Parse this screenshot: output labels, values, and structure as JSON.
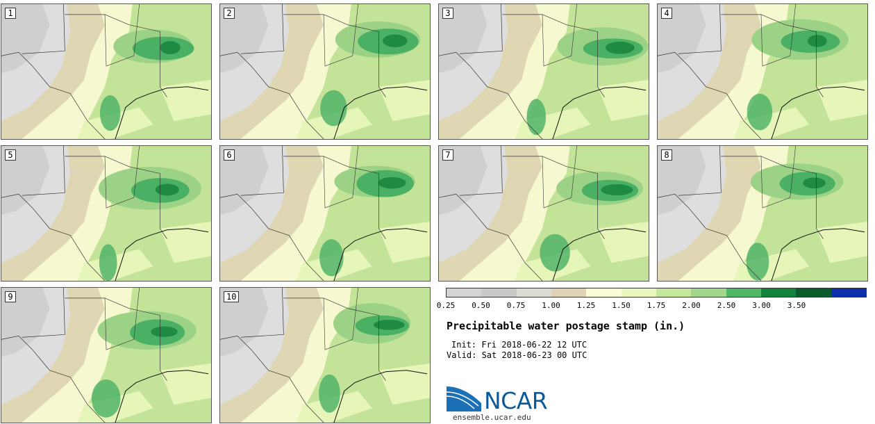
{
  "map": {
    "title": "Precipitable water postage stamp (in.)",
    "init": "Init: Fri 2018-06-22 12 UTC",
    "valid": "Valid: Sat 2018-06-23 00 UTC",
    "panels": [
      {
        "label": "1"
      },
      {
        "label": "2"
      },
      {
        "label": "3"
      },
      {
        "label": "4"
      },
      {
        "label": "5"
      },
      {
        "label": "6"
      },
      {
        "label": "7"
      },
      {
        "label": "8"
      },
      {
        "label": "9"
      },
      {
        "label": "10"
      }
    ],
    "colorbar": {
      "tick_labels": [
        "0.25",
        "0.50",
        "0.75",
        "1.00",
        "1.25",
        "1.50",
        "1.75",
        "2.00",
        "2.50",
        "3.00",
        "3.50"
      ],
      "colors": [
        "#d4d4d4",
        "#c8c8c8",
        "#dcdcd4",
        "#dfd2b6",
        "#fbfcd6",
        "#eaf8bf",
        "#c6e89c",
        "#a2d68a",
        "#4fb766",
        "#12823c",
        "#0a5c2c",
        "#0f2eab"
      ]
    },
    "logo": {
      "name": "NCAR",
      "url": "ensemble.ucar.edu"
    }
  }
}
